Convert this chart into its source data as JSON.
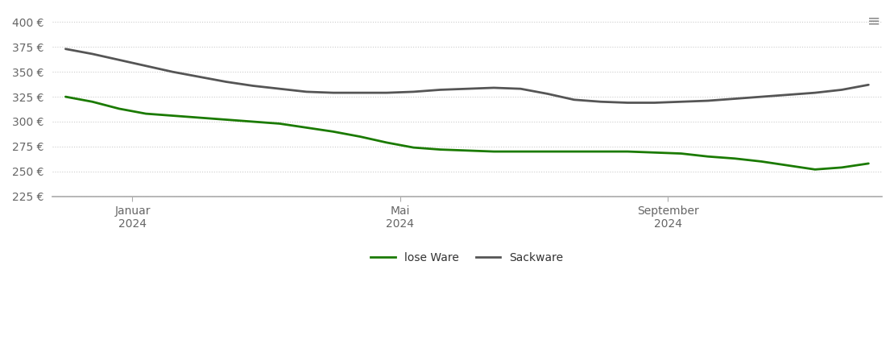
{
  "background_color": "#ffffff",
  "ylim": [
    225,
    410
  ],
  "yticks": [
    225,
    250,
    275,
    300,
    325,
    350,
    375,
    400
  ],
  "lose_ware_color": "#1a7a00",
  "sackware_color": "#555555",
  "legend_labels": [
    "lose Ware",
    "Sackware"
  ],
  "x_tick_labels": [
    "Januar\n2024",
    "Mai\n2024",
    "September\n2024"
  ],
  "x_tick_positions": [
    1,
    5,
    9
  ],
  "xlim": [
    -0.2,
    12.2
  ],
  "lose_ware": {
    "x": [
      0,
      0.4,
      0.8,
      1.2,
      1.6,
      2.0,
      2.4,
      2.8,
      3.2,
      3.6,
      4.0,
      4.4,
      4.8,
      5.2,
      5.6,
      6.0,
      6.4,
      6.8,
      7.2,
      7.6,
      8.0,
      8.4,
      8.8,
      9.2,
      9.6,
      10.0,
      10.4,
      10.8,
      11.2,
      11.6,
      12.0
    ],
    "y": [
      325,
      320,
      313,
      308,
      306,
      304,
      302,
      300,
      298,
      294,
      290,
      285,
      279,
      274,
      272,
      271,
      270,
      270,
      270,
      270,
      270,
      270,
      269,
      268,
      265,
      263,
      260,
      256,
      252,
      254,
      258
    ]
  },
  "sackware": {
    "x": [
      0,
      0.4,
      0.8,
      1.2,
      1.6,
      2.0,
      2.4,
      2.8,
      3.2,
      3.6,
      4.0,
      4.4,
      4.8,
      5.2,
      5.6,
      6.0,
      6.4,
      6.8,
      7.2,
      7.6,
      8.0,
      8.4,
      8.8,
      9.2,
      9.6,
      10.0,
      10.4,
      10.8,
      11.2,
      11.6,
      12.0
    ],
    "y": [
      373,
      368,
      362,
      356,
      350,
      345,
      340,
      336,
      333,
      330,
      329,
      329,
      329,
      330,
      332,
      333,
      334,
      333,
      328,
      322,
      320,
      319,
      319,
      320,
      321,
      323,
      325,
      327,
      329,
      332,
      337
    ]
  },
  "grid_color": "#cccccc",
  "grid_linestyle": "dotted",
  "grid_linewidth": 0.8,
  "spine_color": "#aaaaaa",
  "tick_color": "#666666",
  "tick_fontsize": 10,
  "line_width": 2.0,
  "legend_fontsize": 10,
  "hamburger_color": "#888888"
}
